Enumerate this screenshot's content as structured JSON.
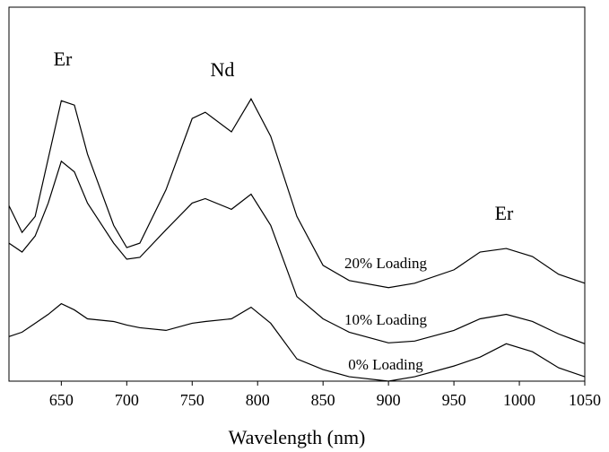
{
  "chart_data": {
    "type": "line",
    "x_label": "Wavelength (nm)",
    "xlim": [
      610,
      1050
    ],
    "xticks": [
      650,
      700,
      750,
      800,
      850,
      900,
      950,
      1000,
      1050
    ],
    "ylim": [
      0,
      420
    ],
    "x": [
      610,
      620,
      630,
      640,
      650,
      660,
      670,
      690,
      700,
      710,
      730,
      750,
      760,
      780,
      795,
      810,
      830,
      850,
      870,
      900,
      920,
      950,
      970,
      990,
      1010,
      1030,
      1050
    ],
    "series": [
      {
        "name": "20% Loading",
        "color": "#000000",
        "values": [
          197,
          167,
          185,
          250,
          315,
          310,
          255,
          175,
          150,
          155,
          215,
          295,
          302,
          280,
          317,
          275,
          185,
          130,
          113,
          105,
          110,
          125,
          145,
          149,
          140,
          120,
          110
        ]
      },
      {
        "name": "10% Loading",
        "color": "#000000",
        "values": [
          155,
          145,
          163,
          200,
          247,
          235,
          200,
          155,
          137,
          139,
          170,
          200,
          205,
          193,
          210,
          175,
          95,
          70,
          55,
          43,
          45,
          57,
          70,
          75,
          67,
          53,
          42
        ]
      },
      {
        "name": "0% Loading",
        "color": "#000000",
        "values": [
          50,
          55,
          65,
          75,
          87,
          80,
          70,
          67,
          63,
          60,
          57,
          65,
          67,
          70,
          83,
          65,
          25,
          13,
          5,
          0,
          5,
          17,
          27,
          42,
          33,
          15,
          5
        ]
      }
    ],
    "annotations": [
      "Er",
      "Nd",
      "Er"
    ]
  }
}
